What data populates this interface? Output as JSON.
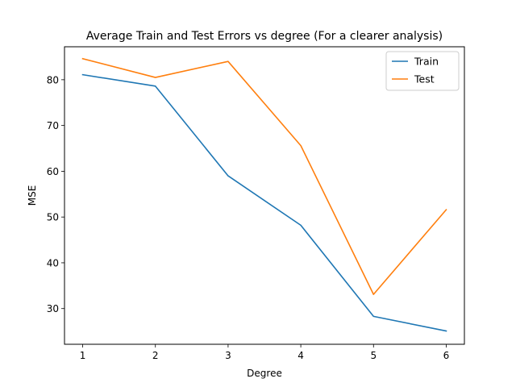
{
  "chart_data": {
    "type": "line",
    "title": "Average Train and Test Errors vs degree (For a clearer analysis)",
    "xlabel": "Degree",
    "ylabel": "MSE",
    "x": [
      1,
      2,
      3,
      4,
      5,
      6
    ],
    "xticks": [
      "1",
      "2",
      "3",
      "4",
      "5",
      "6"
    ],
    "yticks": [
      "30",
      "40",
      "50",
      "60",
      "70",
      "80"
    ],
    "xlim": [
      0.75,
      6.25
    ],
    "ylim": [
      22.2,
      87.2
    ],
    "grid": false,
    "legend_position": "top-right",
    "series": [
      {
        "name": "Train",
        "color": "#1f77b4",
        "values": [
          81.1,
          78.6,
          59.0,
          48.2,
          28.3,
          25.1
        ]
      },
      {
        "name": "Test",
        "color": "#ff7f0e",
        "values": [
          84.6,
          80.5,
          84.0,
          65.6,
          33.1,
          51.6
        ]
      }
    ]
  }
}
